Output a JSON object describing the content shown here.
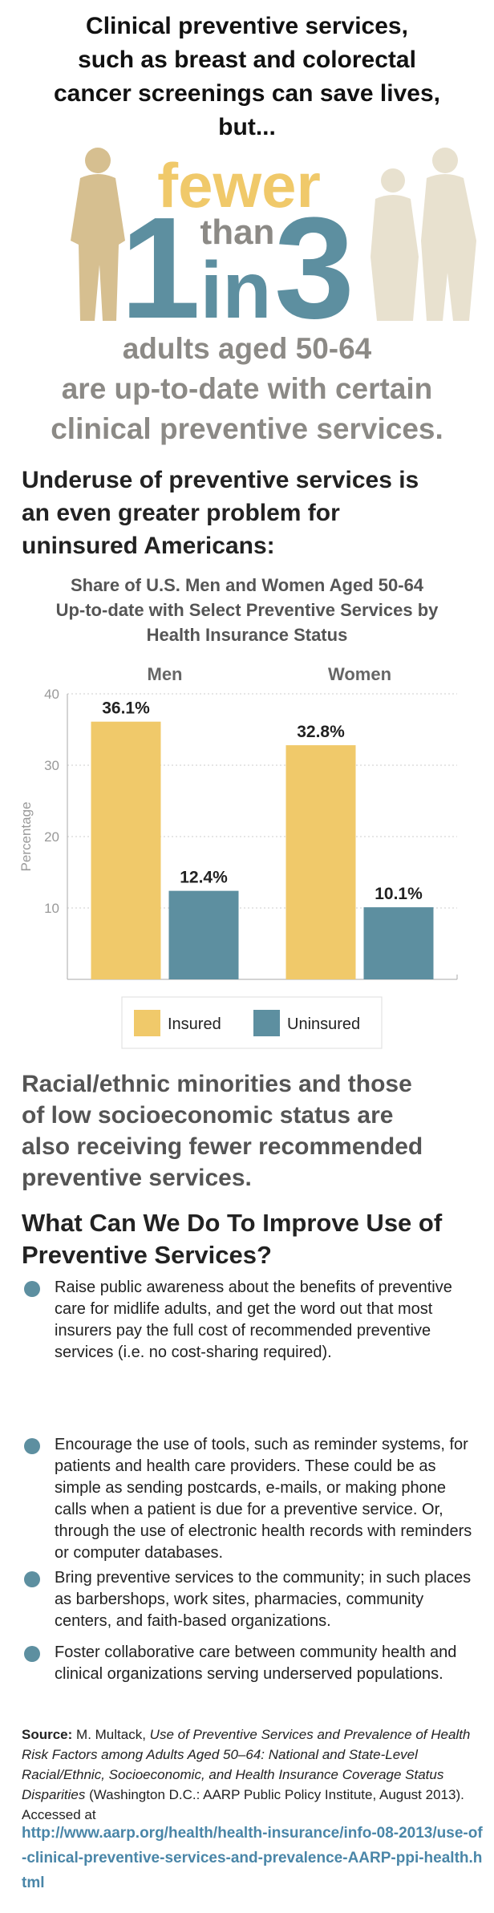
{
  "headline": [
    "Clinical preventive services,",
    "such as breast and colorectal",
    "cancer screenings can save lives,",
    "but..."
  ],
  "hero": {
    "fewer": "fewer",
    "one": "1",
    "than": "than",
    "in": "in",
    "three": "3",
    "caption": [
      "adults aged 50-64",
      "are up-to-date with certain",
      "clinical preventive services."
    ]
  },
  "subhead": [
    "Underuse of preventive services is",
    "an even greater problem for",
    "uninsured Americans:"
  ],
  "chart_data": {
    "type": "bar",
    "title": [
      "Share of U.S. Men and Women Aged 50-64",
      "Up-to-date with Select Preventive Services by",
      "Health Insurance Status"
    ],
    "ylabel": "Percentage",
    "categories": [
      "Men",
      "Women"
    ],
    "series": [
      {
        "name": "Insured",
        "color": "#f0c96a",
        "values": [
          36.1,
          32.8
        ],
        "value_labels": [
          "36.1%",
          "32.8%"
        ]
      },
      {
        "name": "Uninsured",
        "color": "#5d8fa0",
        "values": [
          12.4,
          10.1
        ],
        "value_labels": [
          "12.4%",
          "10.1%"
        ]
      }
    ],
    "ylim": [
      0,
      40
    ],
    "yticks": [
      10,
      20,
      30,
      40
    ],
    "grid": true,
    "legend": "bottom"
  },
  "minorities": [
    "Racial/ethnic minorities and those",
    "of low socioeconomic status are",
    "also receiving fewer recommended",
    "preventive services."
  ],
  "actions": {
    "heading": [
      "What Can We Do To Improve Use of",
      "Preventive Services?"
    ],
    "items": [
      "Raise public awareness about the benefits of preventive care for midlife adults, and get the word out that most insurers pay the full cost of recommended preventive services (i.e. no cost-sharing required).",
      "Encourage the use of tools, such as reminder systems, for patients and health care providers. These could be as simple as sending postcards, e-mails, or making phone calls when a patient is due for a preventive service. Or, through the use of electronic health records with reminders or computer databases.",
      "Bring preventive services to the community; in such places as barbershops, work sites, pharmacies, community centers, and faith-based organizations.",
      "Foster collaborative care between community health and clinical organizations serving underserved populations."
    ]
  },
  "source": {
    "label": "Source:",
    "author": "M. Multack,",
    "title": "Use of Preventive Services and Prevalence of Health Risk Factors among Adults Aged 50–64: National and State-Level Racial/Ethnic, Socioeconomic, and Health Insurance Coverage Status Disparities",
    "publisher": "(Washington D.C.: AARP Public Policy Institute, August 2013).",
    "accessed": "Accessed at",
    "url": "http://www.aarp.org/health/health-insurance/info-08-2013/use-of-clinical-preventive-services-and-prevalence-AARP-ppi-health.html"
  }
}
